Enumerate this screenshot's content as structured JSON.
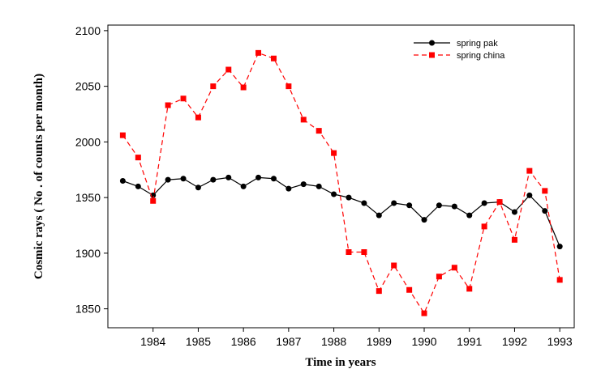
{
  "chart_data": {
    "type": "line",
    "xlabel": "Time  in years",
    "ylabel": "Cosmic rays ( No . of counts per month)",
    "x": [
      1983.33,
      1983.67,
      1984,
      1984.33,
      1984.67,
      1985,
      1985.33,
      1985.67,
      1986,
      1986.33,
      1986.67,
      1987,
      1987.33,
      1987.67,
      1988,
      1988.33,
      1988.67,
      1989,
      1989.33,
      1989.67,
      1990,
      1990.33,
      1990.67,
      1991,
      1991.33,
      1991.67,
      1992,
      1992.33,
      1992.67,
      1993
    ],
    "series": [
      {
        "name": "spring pak",
        "color": "#000000",
        "linestyle": "solid",
        "marker": "circle",
        "values": [
          1965,
          1960,
          1952,
          1966,
          1967,
          1959,
          1966,
          1968,
          1960,
          1968,
          1967,
          1958,
          1962,
          1960,
          1953,
          1950,
          1945,
          1934,
          1945,
          1943,
          1930,
          1943,
          1942,
          1934,
          1945,
          1946,
          1937,
          1952,
          1938,
          1906
        ]
      },
      {
        "name": "spring china",
        "color": "#ff0000",
        "linestyle": "dashed",
        "marker": "square",
        "values": [
          2006,
          1986,
          1947,
          2033,
          2039,
          2022,
          2050,
          2065,
          2049,
          2080,
          2075,
          2050,
          2020,
          2010,
          1990,
          1901,
          1901,
          1866,
          1889,
          1867,
          1846,
          1879,
          1887,
          1868,
          1924,
          1946,
          1912,
          1974,
          1956,
          1876
        ]
      }
    ],
    "xlim": [
      1983,
      1993.32
    ],
    "ylim": [
      1833,
      2105
    ],
    "xticks": [
      1984,
      1985,
      1986,
      1987,
      1988,
      1989,
      1990,
      1991,
      1992,
      1993
    ],
    "yticks": [
      1850,
      1900,
      1950,
      2000,
      2050,
      2100
    ],
    "grid": false,
    "legend": "upper right"
  }
}
